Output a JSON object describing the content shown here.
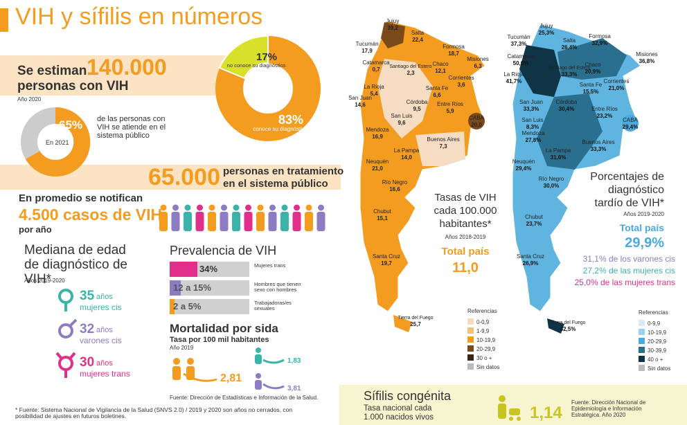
{
  "header": {
    "title": "VIH y sífilis en números"
  },
  "estimate": {
    "intro": "Se estiman",
    "number": "140.000",
    "label": "personas con VIH",
    "year": "Año 2020"
  },
  "diagnosis": {
    "unknown_pct": "17%",
    "unknown_label": "no conoce su diagnóstico",
    "known_pct": "83%",
    "known_label": "conoce su diagnóstico"
  },
  "public_care": {
    "pct": "65%",
    "year": "En 2021",
    "label": "de las personas con VIH se atiende en el sistema público"
  },
  "treatment": {
    "number": "65.000",
    "label_1": "personas en tratamiento",
    "label_2": "en el sistema público"
  },
  "notified": {
    "intro": "En promedio se notifican",
    "number": "4.500 casos de VIH",
    "period": "por año"
  },
  "median_age": {
    "title": "Mediana de edad de diagnóstico de VIH*",
    "years": "Años 2019-2020",
    "groups": [
      {
        "age": "35",
        "unit": "años",
        "label": "mujeres cis"
      },
      {
        "age": "32",
        "unit": "años",
        "label": "varones cis"
      },
      {
        "age": "30",
        "unit": "años",
        "label": "mujeres trans"
      }
    ]
  },
  "prevalence": {
    "title": "Prevalencia de VIH",
    "rows": [
      {
        "value": "34%",
        "label": "Mujeres trans"
      },
      {
        "value": "12 a 15%",
        "label": "Hombres que tienen sexo con hombres"
      },
      {
        "value": "2 a 5%",
        "label": "Trabajadoras/es sexuales"
      }
    ]
  },
  "mortality": {
    "title": "Mortalidad por sida",
    "subtitle": "Tasa por 100 mil habitantes",
    "year": "Año 2019",
    "values": [
      "2,81",
      "1,83",
      "3,81"
    ],
    "source": "Fuente: Dirección de Estadísticas e Información de la Salud."
  },
  "footnote": "* Fuente: Sistema Nacional de Vigilancia de la Salud (SNVS 2.0) / 2019 y 2020 son años no cerrados, con posibilidad de ajustes en futuros boletines.",
  "map_rates": {
    "title": "Tasas de VIH cada 100.000 habitantes*",
    "years": "Años 2018-2019",
    "total_label": "Total país",
    "total": "11,0",
    "legend_title": "Referencias",
    "legend": [
      "0-0,9",
      "1-9,9",
      "10-19,9",
      "20-29,9",
      "30 o +",
      "Sin datos"
    ],
    "provinces": [
      {
        "name": "Jujuy",
        "value": "39,2"
      },
      {
        "name": "Salta",
        "value": "22,4"
      },
      {
        "name": "Formosa",
        "value": "18,7"
      },
      {
        "name": "Tucumán",
        "value": "17,9"
      },
      {
        "name": "Catamarca",
        "value": "0,7"
      },
      {
        "name": "Santiago del Estero",
        "value": "2,3"
      },
      {
        "name": "Chaco",
        "value": "12,1"
      },
      {
        "name": "Misiones",
        "value": "6,3"
      },
      {
        "name": "Corrientes",
        "value": "3,6"
      },
      {
        "name": "La Rioja",
        "value": "5,4"
      },
      {
        "name": "San Juan",
        "value": "14,6"
      },
      {
        "name": "Córdoba",
        "value": "9,5"
      },
      {
        "name": "Santa Fe",
        "value": "6,6"
      },
      {
        "name": "Entre Ríos",
        "value": "5,9"
      },
      {
        "name": "San Luis",
        "value": "9,6"
      },
      {
        "name": "CABA",
        "value": "20,0"
      },
      {
        "name": "Mendoza",
        "value": "16,9"
      },
      {
        "name": "Buenos Aires",
        "value": "7,3"
      },
      {
        "name": "La Pampa",
        "value": "14,0"
      },
      {
        "name": "Neuquén",
        "value": "21,0"
      },
      {
        "name": "Río Negro",
        "value": "16,6"
      },
      {
        "name": "Chubut",
        "value": "15,1"
      },
      {
        "name": "Santa Cruz",
        "value": "19,7"
      },
      {
        "name": "Tierra del Fuego",
        "value": "25,7"
      }
    ]
  },
  "map_late": {
    "title": "Porcentajes de diagnóstico tardío de VIH*",
    "years": "Años 2019-2020",
    "total_label": "Total país",
    "total": "29,9%",
    "breakdown": [
      "31,1% de los varones cis",
      "27,2% de las mujeres cis",
      "25,0% de las mujeres trans"
    ],
    "legend_title": "Referencias",
    "legend": [
      "0-9,9",
      "10-19,9",
      "20-29,9",
      "30-39,9",
      "40 o +",
      "Sin datos"
    ],
    "provinces": [
      {
        "name": "Jujuy",
        "value": "25,3%"
      },
      {
        "name": "Salta",
        "value": "26,4%"
      },
      {
        "name": "Formosa",
        "value": "32,9%"
      },
      {
        "name": "Tucumán",
        "value": "37,3%"
      },
      {
        "name": "Catamarca",
        "value": "50,0%"
      },
      {
        "name": "La Rioja",
        "value": "41,7%"
      },
      {
        "name": "Santiago del Estero",
        "value": "33,3%"
      },
      {
        "name": "Chaco",
        "value": "20,9%"
      },
      {
        "name": "Misiones",
        "value": "36,8%"
      },
      {
        "name": "Corrientes",
        "value": "21,0%"
      },
      {
        "name": "Santa Fe",
        "value": "15,5%"
      },
      {
        "name": "San Juan",
        "value": "33,3%"
      },
      {
        "name": "Córdoba",
        "value": "30,4%"
      },
      {
        "name": "San Luis",
        "value": "8,3%"
      },
      {
        "name": "Entre Ríos",
        "value": "23,2%"
      },
      {
        "name": "CABA",
        "value": "29,4%"
      },
      {
        "name": "Mendoza",
        "value": "27,8%"
      },
      {
        "name": "Buenos Aires",
        "value": "33,3%"
      },
      {
        "name": "La Pampa",
        "value": "31,6%"
      },
      {
        "name": "Neuquén",
        "value": "29,4%"
      },
      {
        "name": "Río Negro",
        "value": "30,0%"
      },
      {
        "name": "Chubut",
        "value": "23,7%"
      },
      {
        "name": "Santa Cruz",
        "value": "26,9%"
      },
      {
        "name": "Tierra del Fuego",
        "value": "42,5%"
      }
    ]
  },
  "syphilis": {
    "title": "Sífilis congénita",
    "subtitle": "Tasa nacional cada 1.000 nacidos vivos",
    "value": "1,14",
    "source": "Fuente: Dirección Nacional de Epidemiología e Información Estratégica. Año 2020"
  }
}
